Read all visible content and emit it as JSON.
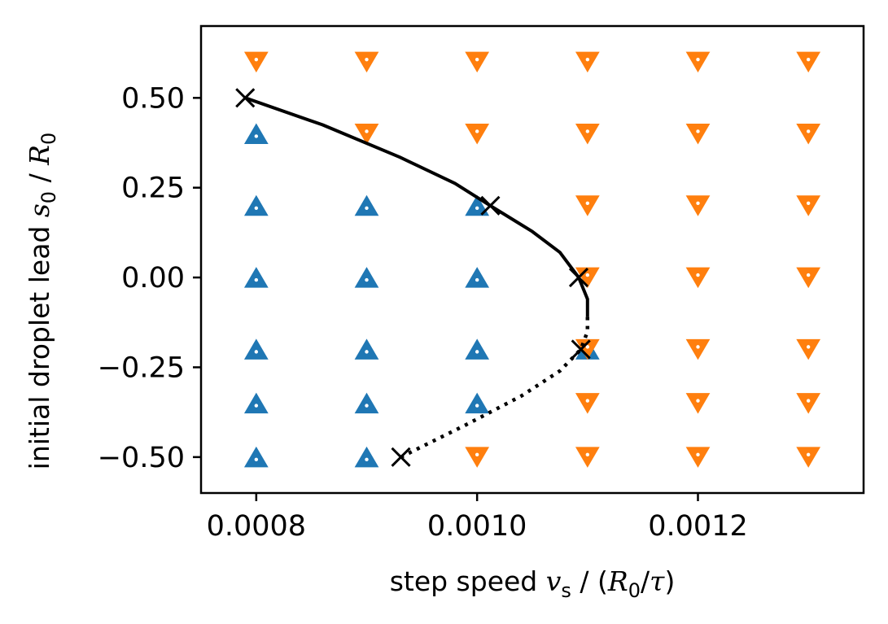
{
  "chart_data": {
    "type": "scatter",
    "title": "",
    "xlabel": {
      "prefix": "step speed ",
      "var": "v",
      "sub": "s",
      "sep": " / (",
      "unit_var": "R",
      "unit_sub": "0",
      "unit_slash": "/",
      "unit_tau": "τ",
      "suffix": ")"
    },
    "ylabel": {
      "prefix": "initial droplet lead ",
      "var": "s",
      "sub": "0",
      "sep": " / ",
      "unit_var": "R",
      "unit_sub": "0"
    },
    "xlim": [
      0.00075,
      0.00135
    ],
    "ylim": [
      -0.6,
      0.7
    ],
    "xticks": [
      0.0008,
      0.001,
      0.0012
    ],
    "xtick_labels": [
      "0.0008",
      "0.0010",
      "0.0012"
    ],
    "yticks": [
      0.5,
      0.25,
      0.0,
      -0.25,
      -0.5
    ],
    "ytick_labels": [
      "0.50",
      "0.25",
      "0.00",
      "−0.25",
      "−0.50"
    ],
    "colors": {
      "up": "#1f77b4",
      "down": "#ff7f0e",
      "curve": "#000000"
    },
    "series": [
      {
        "name": "up-triangles",
        "marker": "triangle-up",
        "color": "#1f77b4",
        "points": [
          [
            0.0008,
            0.4
          ],
          [
            0.0008,
            0.2
          ],
          [
            0.0008,
            0.0
          ],
          [
            0.0008,
            -0.2
          ],
          [
            0.0008,
            -0.35
          ],
          [
            0.0008,
            -0.5
          ],
          [
            0.0009,
            0.2
          ],
          [
            0.0009,
            0.0
          ],
          [
            0.0009,
            -0.2
          ],
          [
            0.0009,
            -0.35
          ],
          [
            0.0009,
            -0.5
          ],
          [
            0.001,
            0.2
          ],
          [
            0.001,
            0.0
          ],
          [
            0.001,
            -0.2
          ],
          [
            0.001,
            -0.35
          ],
          [
            0.0011,
            -0.2
          ]
        ]
      },
      {
        "name": "down-triangles",
        "marker": "triangle-down",
        "color": "#ff7f0e",
        "points": [
          [
            0.0008,
            0.6
          ],
          [
            0.0009,
            0.6
          ],
          [
            0.001,
            0.6
          ],
          [
            0.0011,
            0.6
          ],
          [
            0.0012,
            0.6
          ],
          [
            0.0013,
            0.6
          ],
          [
            0.0009,
            0.4
          ],
          [
            0.001,
            0.4
          ],
          [
            0.0011,
            0.4
          ],
          [
            0.0012,
            0.4
          ],
          [
            0.0013,
            0.4
          ],
          [
            0.0011,
            0.2
          ],
          [
            0.0012,
            0.2
          ],
          [
            0.0013,
            0.2
          ],
          [
            0.0011,
            0.0
          ],
          [
            0.0012,
            0.0
          ],
          [
            0.0013,
            0.0
          ],
          [
            0.0011,
            -0.2
          ],
          [
            0.0012,
            -0.2
          ],
          [
            0.0013,
            -0.2
          ],
          [
            0.0011,
            -0.35
          ],
          [
            0.0012,
            -0.35
          ],
          [
            0.0013,
            -0.35
          ],
          [
            0.001,
            -0.5
          ],
          [
            0.0011,
            -0.5
          ],
          [
            0.0012,
            -0.5
          ],
          [
            0.0013,
            -0.5
          ]
        ]
      },
      {
        "name": "boundary-crosses",
        "marker": "x",
        "color": "#000000",
        "points": [
          [
            0.00079,
            0.5
          ],
          [
            0.001012,
            0.2
          ],
          [
            0.001092,
            0.0
          ],
          [
            0.001094,
            -0.2
          ],
          [
            0.000931,
            -0.5
          ]
        ]
      },
      {
        "name": "boundary-solid",
        "style": "solid",
        "color": "#000000",
        "points": [
          [
            0.00079,
            0.5
          ],
          [
            0.00086,
            0.425
          ],
          [
            0.00093,
            0.335
          ],
          [
            0.00098,
            0.262
          ],
          [
            0.001012,
            0.2
          ],
          [
            0.00105,
            0.128
          ],
          [
            0.001075,
            0.07
          ],
          [
            0.001092,
            0.0
          ],
          [
            0.0011,
            -0.06
          ],
          [
            0.0011,
            -0.11
          ]
        ]
      },
      {
        "name": "boundary-dotted",
        "style": "dotted",
        "color": "#000000",
        "points": [
          [
            0.0011,
            -0.11
          ],
          [
            0.0011,
            -0.15
          ],
          [
            0.001094,
            -0.2
          ],
          [
            0.001075,
            -0.26
          ],
          [
            0.00104,
            -0.33
          ],
          [
            0.00099,
            -0.41
          ],
          [
            0.000931,
            -0.5
          ]
        ]
      }
    ]
  }
}
